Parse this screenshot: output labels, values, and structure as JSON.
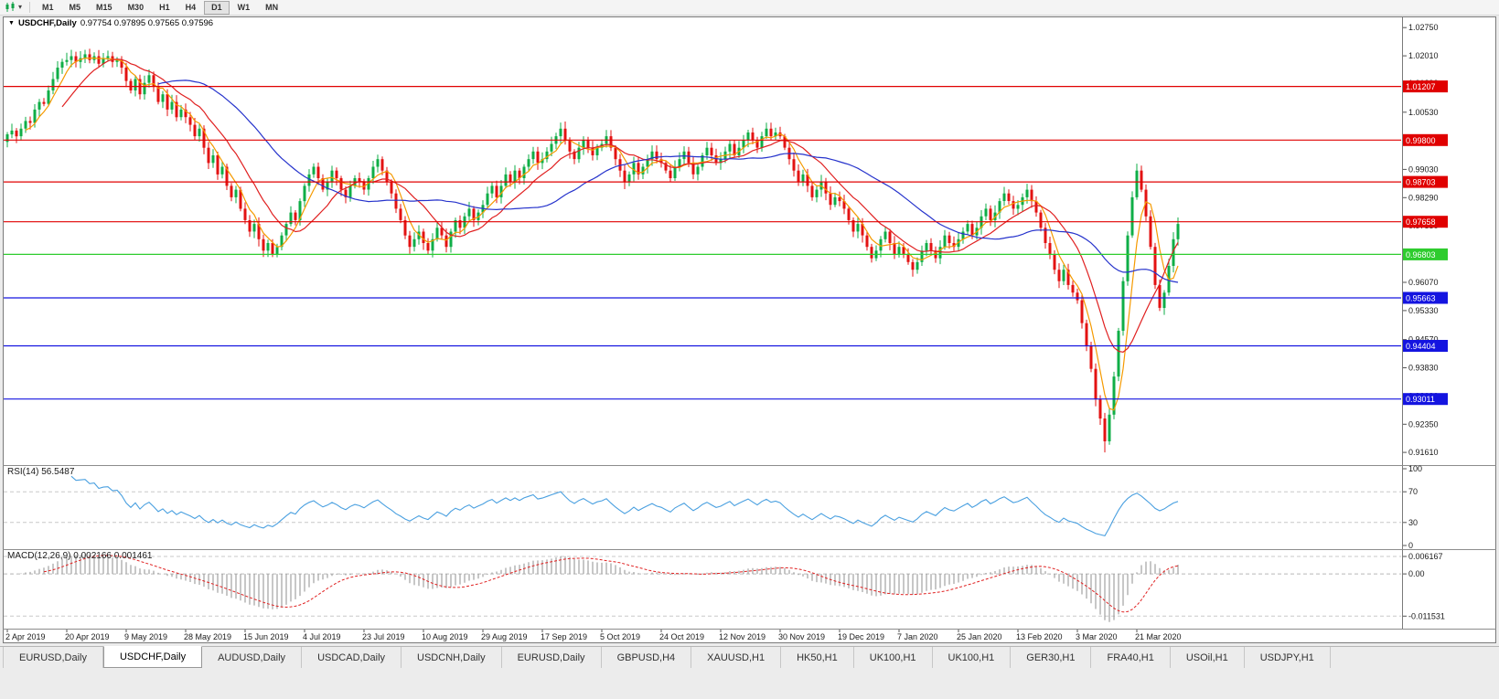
{
  "toolbar": {
    "timeframes": [
      "M1",
      "M5",
      "M15",
      "M30",
      "H1",
      "H4",
      "D1",
      "W1",
      "MN"
    ],
    "active_timeframe": "D1"
  },
  "icons": {
    "chart_marker": "▼",
    "dropdown": "▾"
  },
  "chart_header": {
    "symbol": "USDCHF,Daily",
    "ohlc": "0.97754 0.97895 0.97565 0.97596"
  },
  "colors": {
    "up": "#0fae47",
    "down": "#e31212",
    "rsi_line": "#4aa0e0",
    "macd_hist": "#8f8f8f",
    "macd_signal": "#e02020",
    "axis_text": "#1a1a1a"
  },
  "chart_data": {
    "type": "candlestick",
    "symbol": "USDCHF",
    "timeframe": "Daily",
    "x_labels": [
      "2 Apr 2019",
      "20 Apr 2019",
      "9 May 2019",
      "28 May 2019",
      "15 Jun 2019",
      "4 Jul 2019",
      "23 Jul 2019",
      "10 Aug 2019",
      "29 Aug 2019",
      "17 Sep 2019",
      "5 Oct 2019",
      "24 Oct 2019",
      "12 Nov 2019",
      "30 Nov 2019",
      "19 Dec 2019",
      "7 Jan 2020",
      "25 Jan 2020",
      "13 Feb 2020",
      "3 Mar 2020",
      "21 Mar 2020"
    ],
    "label_every_n_candles": 13,
    "closes": [
      0.9995,
      1.0005,
      0.999,
      1.001,
      1.003,
      1.0025,
      1.006,
      1.008,
      1.0075,
      1.011,
      1.014,
      1.017,
      1.0185,
      1.019,
      1.02,
      1.0185,
      1.0195,
      1.0205,
      1.019,
      1.02,
      1.018,
      1.0195,
      1.02,
      1.0185,
      1.019,
      1.017,
      1.0135,
      1.011,
      1.014,
      1.01,
      1.013,
      1.015,
      1.012,
      1.008,
      1.01,
      1.006,
      1.008,
      1.004,
      1.006,
      1.004,
      1.002,
      0.999,
      1.001,
      0.996,
      0.992,
      0.994,
      0.989,
      0.991,
      0.986,
      0.983,
      0.985,
      0.98,
      0.977,
      0.974,
      0.976,
      0.972,
      0.969,
      0.971,
      0.968,
      0.97,
      0.973,
      0.976,
      0.979,
      0.977,
      0.982,
      0.986,
      0.989,
      0.991,
      0.988,
      0.985,
      0.987,
      0.99,
      0.988,
      0.985,
      0.983,
      0.986,
      0.988,
      0.987,
      0.985,
      0.988,
      0.991,
      0.993,
      0.99,
      0.987,
      0.984,
      0.98,
      0.977,
      0.973,
      0.97,
      0.972,
      0.974,
      0.971,
      0.969,
      0.972,
      0.975,
      0.973,
      0.97,
      0.974,
      0.977,
      0.975,
      0.978,
      0.98,
      0.977,
      0.979,
      0.981,
      0.984,
      0.986,
      0.983,
      0.986,
      0.989,
      0.987,
      0.99,
      0.988,
      0.991,
      0.993,
      0.995,
      0.992,
      0.993,
      0.995,
      0.997,
      0.999,
      1.001,
      0.998,
      0.995,
      0.993,
      0.996,
      0.998,
      0.996,
      0.994,
      0.996,
      0.997,
      0.999,
      0.996,
      0.993,
      0.99,
      0.987,
      0.989,
      0.992,
      0.989,
      0.991,
      0.993,
      0.995,
      0.993,
      0.992,
      0.99,
      0.988,
      0.991,
      0.993,
      0.995,
      0.992,
      0.989,
      0.991,
      0.994,
      0.996,
      0.994,
      0.992,
      0.993,
      0.995,
      0.997,
      0.994,
      0.996,
      0.998,
      1.0,
      0.998,
      0.996,
      0.999,
      1.001,
      0.999,
      1.0,
      0.999,
      0.996,
      0.993,
      0.99,
      0.987,
      0.989,
      0.986,
      0.983,
      0.985,
      0.987,
      0.984,
      0.981,
      0.983,
      0.982,
      0.98,
      0.977,
      0.974,
      0.976,
      0.973,
      0.97,
      0.967,
      0.969,
      0.972,
      0.974,
      0.971,
      0.968,
      0.97,
      0.968,
      0.966,
      0.964,
      0.966,
      0.969,
      0.971,
      0.969,
      0.967,
      0.97,
      0.973,
      0.971,
      0.97,
      0.972,
      0.974,
      0.976,
      0.973,
      0.975,
      0.978,
      0.98,
      0.977,
      0.979,
      0.982,
      0.984,
      0.982,
      0.98,
      0.981,
      0.983,
      0.985,
      0.982,
      0.979,
      0.975,
      0.971,
      0.968,
      0.964,
      0.961,
      0.964,
      0.96,
      0.958,
      0.956,
      0.95,
      0.944,
      0.938,
      0.93,
      0.925,
      0.919,
      0.926,
      0.936,
      0.948,
      0.961,
      0.973,
      0.983,
      0.99,
      0.985,
      0.978,
      0.97,
      0.96,
      0.954,
      0.958,
      0.965,
      0.972,
      0.976
    ],
    "low_extreme": 0.9161,
    "y_axis": {
      "max": 1.0285,
      "min": 0.9135,
      "ticks": [
        "1.02750",
        "1.02010",
        "1.01290",
        "1.00530",
        "0.99810",
        "0.99030",
        "0.98290",
        "0.97550",
        "0.96810",
        "0.96070",
        "0.95330",
        "0.94570",
        "0.93830",
        "0.93090",
        "0.92350",
        "0.91610"
      ]
    },
    "hlines": [
      {
        "price": 1.01207,
        "label": "1.01207",
        "color": "#e00000"
      },
      {
        "price": 0.998,
        "label": "0.99800",
        "color": "#e00000"
      },
      {
        "price": 0.98703,
        "label": "0.98703",
        "color": "#e00000"
      },
      {
        "price": 0.97658,
        "label": "0.97658",
        "color": "#e00000"
      },
      {
        "price": 0.96803,
        "label": "0.96803",
        "color": "#2ecc2e"
      },
      {
        "price": 0.95663,
        "label": "0.95663",
        "color": "#1414e0"
      },
      {
        "price": 0.94404,
        "label": "0.94404",
        "color": "#1414e0"
      },
      {
        "price": 0.93011,
        "label": "0.93011",
        "color": "#1414e0"
      }
    ],
    "moving_averages": [
      {
        "period": 5,
        "color": "#f59a00"
      },
      {
        "period": 13,
        "color": "#e02020"
      },
      {
        "period": 34,
        "color": "#2633cc"
      }
    ],
    "indicators": {
      "rsi": {
        "label": "RSI(14) 56.5487",
        "period": 14,
        "levels": [
          100,
          70,
          30,
          0
        ]
      },
      "macd": {
        "label": "MACD(12,26,9) 0.002166 0.001461",
        "fast": 12,
        "slow": 26,
        "signal": 9,
        "level_labels": [
          "0.006167",
          "0.00",
          "-0.011531"
        ],
        "level_values": [
          0.006167,
          0,
          -0.011531
        ]
      }
    }
  },
  "tabs": {
    "items": [
      "EURUSD,Daily",
      "USDCHF,Daily",
      "AUDUSD,Daily",
      "USDCAD,Daily",
      "USDCNH,Daily",
      "EURUSD,Daily",
      "GBPUSD,H4",
      "XAUUSD,H1",
      "HK50,H1",
      "UK100,H1",
      "UK100,H1",
      "GER30,H1",
      "FRA40,H1",
      "USOil,H1",
      "USDJPY,H1"
    ],
    "active_index": 1
  }
}
